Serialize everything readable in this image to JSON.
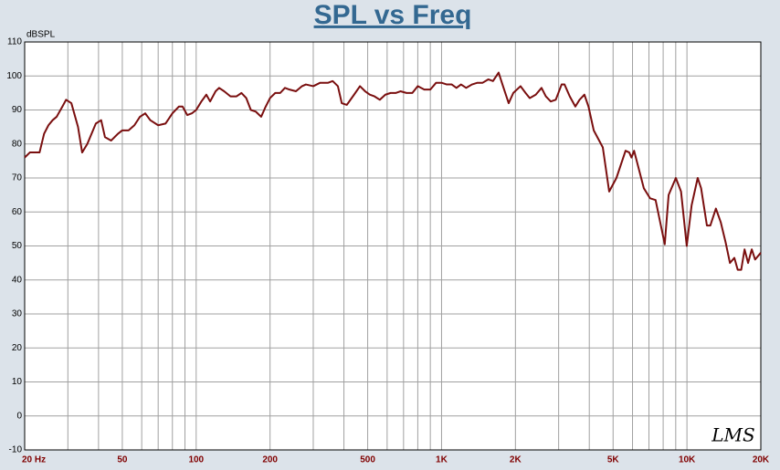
{
  "chart_data": {
    "type": "line",
    "title": "SPL vs Freq",
    "ylabel": "dBSPL",
    "annotation": "LMS",
    "x_log": true,
    "grid": true,
    "xlim": [
      20,
      20000
    ],
    "ylim": [
      -10,
      110
    ],
    "xticks": [
      {
        "value": 20,
        "label": "20 Hz"
      },
      50,
      100,
      200,
      500,
      {
        "value": 1000,
        "label": "1K"
      },
      {
        "value": 2000,
        "label": "2K"
      },
      {
        "value": 5000,
        "label": "5K"
      },
      {
        "value": 10000,
        "label": "10K"
      },
      {
        "value": 20000,
        "label": "20K"
      }
    ],
    "x_minor_gridlines": [
      30,
      40,
      60,
      70,
      80,
      90,
      300,
      400,
      600,
      700,
      800,
      900,
      3000,
      4000,
      6000,
      7000,
      8000,
      9000
    ],
    "yticks": [
      -10,
      0,
      10,
      20,
      30,
      40,
      50,
      60,
      70,
      80,
      90,
      100,
      110
    ],
    "x": [
      20,
      21,
      22,
      23,
      24,
      25,
      26,
      27,
      28.5,
      29.5,
      31,
      33,
      34.3,
      36,
      39,
      41,
      42.5,
      45,
      48,
      50,
      53,
      56,
      59,
      62,
      65,
      70,
      75,
      80,
      85,
      88,
      92,
      96,
      100,
      105,
      110,
      114,
      120,
      124,
      130,
      138,
      146,
      153,
      160,
      167,
      175,
      184,
      192,
      200,
      210,
      220,
      230,
      240,
      255,
      270,
      280,
      300,
      320,
      345,
      360,
      378,
      392,
      411,
      440,
      465,
      488,
      510,
      533,
      560,
      590,
      620,
      650,
      680,
      720,
      760,
      800,
      850,
      900,
      950,
      1000,
      1050,
      1100,
      1150,
      1200,
      1260,
      1330,
      1400,
      1470,
      1550,
      1620,
      1708,
      1780,
      1877,
      1960,
      2098,
      2200,
      2287,
      2420,
      2555,
      2660,
      2786,
      2920,
      3085,
      3170,
      3330,
      3509,
      3650,
      3820,
      3970,
      4170,
      4540,
      4820,
      5160,
      5620,
      5820,
      5940,
      6090,
      6670,
      7080,
      7450,
      8120,
      8420,
      9010,
      9460,
      9980,
      10450,
      11060,
      11420,
      12060,
      12450,
      13120,
      13730,
      14380,
      14970,
      15600,
      16100,
      16640,
      17170,
      17750,
      18370,
      18960,
      20000
    ],
    "series": [
      {
        "color": "#7a0f0f",
        "values": [
          76,
          77.5,
          77.5,
          77.5,
          83,
          85.5,
          87,
          88,
          91,
          93,
          92,
          85,
          77.5,
          80,
          86,
          87,
          82,
          81,
          83,
          84,
          84,
          85.5,
          88,
          89,
          87,
          85.5,
          86,
          89,
          91,
          91,
          88.5,
          89,
          90,
          92.5,
          94.5,
          92.5,
          95.5,
          96.5,
          95.5,
          94,
          94,
          95,
          93.5,
          90,
          89.5,
          88,
          91,
          93.5,
          95,
          95,
          96.5,
          96,
          95.5,
          97,
          97.5,
          97,
          98,
          98,
          98.5,
          97,
          92,
          91.5,
          94.5,
          97,
          95.5,
          94.5,
          94,
          93,
          94.5,
          95,
          95,
          95.5,
          95,
          95,
          97,
          96,
          96,
          98,
          98,
          97.5,
          97.5,
          96.5,
          97.5,
          96.5,
          97.5,
          98,
          98,
          99,
          98.5,
          101,
          97,
          92,
          95,
          97,
          95,
          93.5,
          94.5,
          96.5,
          94,
          92.5,
          93,
          97.5,
          97.5,
          94,
          91,
          93,
          94.5,
          91,
          84,
          79,
          66,
          70,
          78,
          77.5,
          76,
          78,
          67,
          64,
          63.5,
          50.5,
          65,
          70,
          66,
          50,
          62,
          70,
          67,
          56,
          56,
          61,
          57,
          51,
          45,
          46.5,
          43,
          43,
          49,
          45,
          49,
          46,
          48
        ]
      }
    ]
  }
}
